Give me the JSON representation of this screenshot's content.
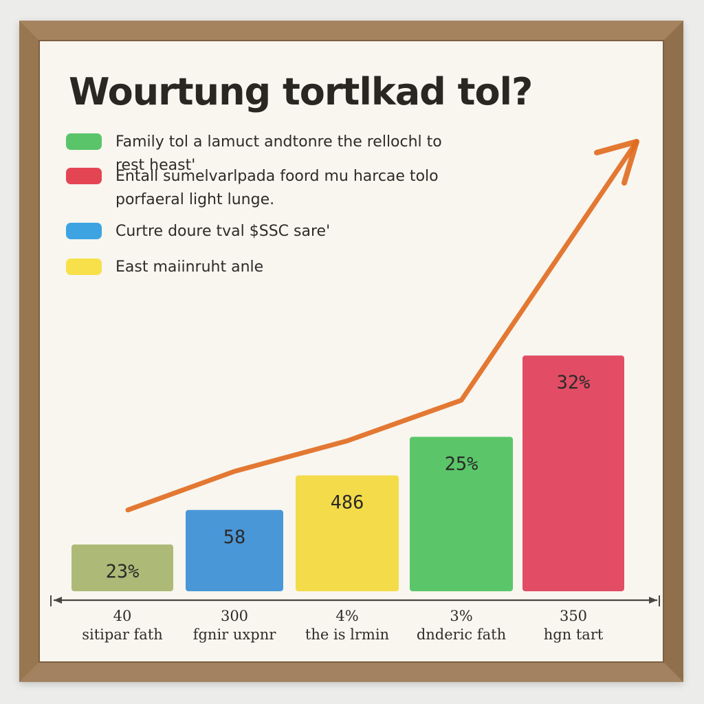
{
  "chart_data": {
    "type": "bar",
    "title": "Wourtung tortlkad tol?",
    "legend": [
      {
        "label": "Family tol a lamuct andtonre the rellochl to rest heast'",
        "color": "#4cbf5e"
      },
      {
        "label": "Entall sumelvarlpada foord mu harcae tolo porfaeral light lunge.",
        "color": "#e23545"
      },
      {
        "label": "Curtre doure tval $SSC sare'",
        "color": "#2d9ce0"
      },
      {
        "label": "East maiinruht anle",
        "color": "#f6dd3c"
      }
    ],
    "categories": [
      {
        "value_text": "40",
        "name": "sitipar fath"
      },
      {
        "value_text": "300",
        "name": "fgnir uxpnr"
      },
      {
        "value_text": "4%",
        "name": "the is lrmin"
      },
      {
        "value_text": "3%",
        "name": "dnderic fath"
      },
      {
        "value_text": "350",
        "name": "hgn tart"
      }
    ],
    "bars": [
      {
        "label": "23%",
        "value": 23,
        "color": "#a7b56e"
      },
      {
        "label": "58",
        "value": 40,
        "color": "#3c8fd6"
      },
      {
        "label": "486",
        "value": 57,
        "color": "#f3d83c"
      },
      {
        "label": "25%",
        "value": 76,
        "color": "#4fc25f"
      },
      {
        "label": "32%",
        "value": 116,
        "color": "#e0405a"
      }
    ],
    "trend_line": {
      "color": "#e06a1e",
      "values": [
        40,
        59,
        74,
        94,
        176
      ]
    },
    "ylim": [
      0,
      180
    ],
    "grid": false,
    "legend_position": "top-left"
  }
}
